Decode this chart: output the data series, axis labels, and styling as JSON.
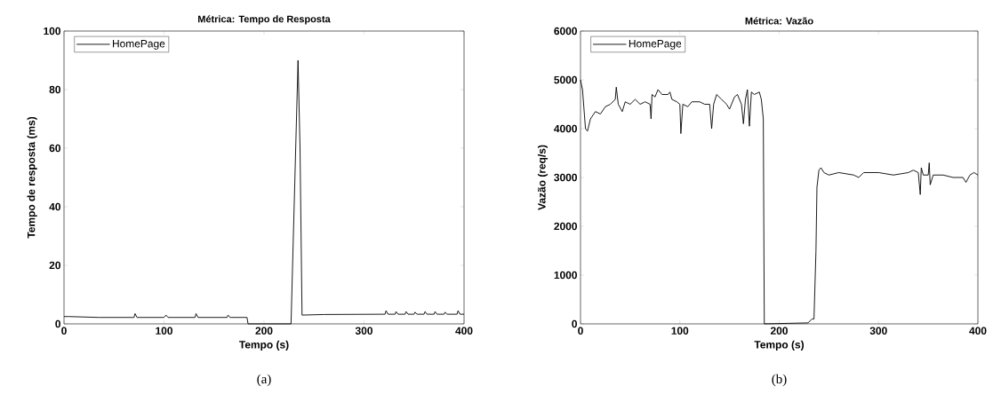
{
  "chart_data": [
    {
      "type": "line",
      "title": "Métrica: Tempo de Resposta",
      "xlabel": "Tempo (s)",
      "ylabel": "Tempo de resposta (ms)",
      "annotations": [
        "(a)"
      ],
      "x": [
        0,
        5,
        35,
        70,
        71,
        73,
        100,
        102,
        104,
        131,
        132,
        134,
        163,
        164,
        166,
        183,
        184,
        227,
        234,
        236,
        238,
        260,
        321,
        322,
        324,
        331,
        332,
        334,
        341,
        342,
        344,
        350,
        351,
        353,
        360,
        361,
        363,
        370,
        371,
        373,
        380,
        381,
        383,
        393,
        394,
        396,
        400
      ],
      "series": [
        {
          "name": "HomePage",
          "color": "#000000",
          "values": [
            2.5,
            2.5,
            2.2,
            2.2,
            3.5,
            2.2,
            2.2,
            3,
            2.2,
            2.2,
            3.5,
            2.2,
            2.2,
            3,
            2.2,
            2.2,
            0,
            0,
            90,
            60,
            3,
            3.2,
            3.3,
            4.5,
            3.3,
            3.3,
            4.2,
            3.3,
            3.3,
            4.2,
            3.3,
            3.3,
            4,
            3.3,
            3.3,
            4.2,
            3.3,
            3.3,
            4.2,
            3.3,
            3.3,
            4,
            3.3,
            3.3,
            4.5,
            3.3,
            3.3
          ]
        }
      ],
      "xlim": [
        0,
        400
      ],
      "ylim": [
        0,
        100
      ],
      "xticks": [
        0,
        100,
        200,
        300,
        400
      ],
      "yticks": [
        0,
        20,
        40,
        60,
        80,
        100
      ],
      "legend": "top left"
    },
    {
      "type": "line",
      "title": "Métrica: Vazão",
      "xlabel": "Tempo (s)",
      "ylabel": "Vazão (req/s)",
      "annotations": [
        "(b)"
      ],
      "x": [
        0,
        2,
        5,
        7,
        10,
        15,
        20,
        25,
        30,
        35,
        36,
        38,
        42,
        45,
        50,
        55,
        60,
        65,
        70,
        71,
        72,
        75,
        78,
        82,
        88,
        90,
        92,
        97,
        100,
        101,
        103,
        108,
        112,
        120,
        125,
        130,
        132,
        134,
        137,
        142,
        147,
        150,
        155,
        158,
        162,
        164,
        166,
        168,
        170,
        172,
        175,
        180,
        182,
        184,
        184.5,
        185,
        229,
        233,
        235,
        237,
        238,
        240,
        242,
        245,
        250,
        260,
        275,
        280,
        285,
        300,
        315,
        330,
        335,
        340,
        342,
        343,
        345,
        350,
        351,
        352,
        355,
        365,
        375,
        385,
        388,
        392,
        396,
        400
      ],
      "series": [
        {
          "name": "HomePage",
          "color": "#000000",
          "values": [
            5000,
            4800,
            4000,
            3950,
            4200,
            4350,
            4300,
            4450,
            4500,
            4600,
            4850,
            4500,
            4350,
            4550,
            4500,
            4600,
            4500,
            4550,
            4500,
            4200,
            4700,
            4650,
            4800,
            4700,
            4700,
            4750,
            4600,
            4550,
            4500,
            3900,
            4500,
            4450,
            4550,
            4550,
            4500,
            4500,
            4000,
            4500,
            4700,
            4600,
            4500,
            4400,
            4650,
            4700,
            4500,
            4100,
            4600,
            4800,
            4050,
            4750,
            4700,
            4750,
            4600,
            4200,
            2000,
            0,
            20,
            100,
            100,
            1500,
            2800,
            3150,
            3200,
            3100,
            3050,
            3100,
            3050,
            3000,
            3100,
            3100,
            3050,
            3100,
            3150,
            3100,
            2650,
            3200,
            3050,
            3050,
            3300,
            2850,
            3050,
            3050,
            3000,
            3000,
            2900,
            3050,
            3100,
            3050
          ]
        }
      ],
      "xlim": [
        0,
        400
      ],
      "ylim": [
        0,
        6000
      ],
      "xticks": [
        0,
        100,
        200,
        300,
        400
      ],
      "yticks": [
        0,
        1000,
        2000,
        3000,
        4000,
        5000,
        6000
      ],
      "legend": "top left"
    }
  ]
}
